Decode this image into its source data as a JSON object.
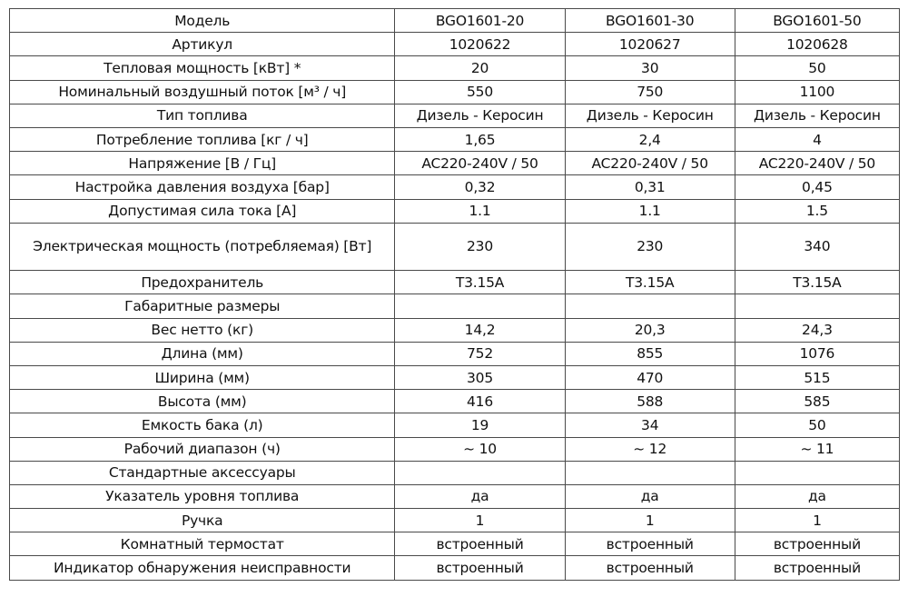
{
  "table": {
    "rows": [
      {
        "param": "Модель",
        "values": [
          "BGO1601-20",
          "BGO1601-30",
          "BGO1601-50"
        ]
      },
      {
        "param": "Артикул",
        "values": [
          "1020622",
          "1020627",
          "1020628"
        ]
      },
      {
        "param": "Тепловая мощность [кВт] *",
        "values": [
          "20",
          "30",
          "50"
        ]
      },
      {
        "param": "Номинальный воздушный поток [м³ / ч]",
        "values": [
          "550",
          "750",
          "1100"
        ]
      },
      {
        "param": "Тип топлива",
        "values": [
          "Дизель - Керосин",
          "Дизель - Керосин",
          "Дизель - Керосин"
        ]
      },
      {
        "param": "Потребление топлива [кг / ч]",
        "values": [
          "1,65",
          "2,4",
          "4"
        ]
      },
      {
        "param": "Напряжение [В / Гц]",
        "values": [
          "AC220-240V / 50",
          "AC220-240V / 50",
          "AC220-240V / 50"
        ]
      },
      {
        "param": "Настройка давления воздуха [бар]",
        "values": [
          "0,32",
          "0,31",
          "0,45"
        ]
      },
      {
        "param": "Допустимая сила тока [A]",
        "values": [
          "1.1",
          "1.1",
          "1.5"
        ]
      },
      {
        "param": "Электрическая мощность (потребляемая) [Вт]",
        "values": [
          "230",
          "230",
          "340"
        ]
      },
      {
        "param": "Предохранитель",
        "values": [
          "T3.15A",
          "T3.15A",
          "T3.15A"
        ]
      },
      {
        "param": "Габаритные размеры",
        "values": [
          "",
          "",
          ""
        ]
      },
      {
        "param": "Вес нетто (кг)",
        "values": [
          "14,2",
          "20,3",
          "24,3"
        ]
      },
      {
        "param": "Длина (мм)",
        "values": [
          "752",
          "855",
          "1076"
        ]
      },
      {
        "param": "Ширина (мм)",
        "values": [
          "305",
          "470",
          "515"
        ]
      },
      {
        "param": "Высота (мм)",
        "values": [
          "416",
          "588",
          "585"
        ]
      },
      {
        "param": "Емкость бака (л)",
        "values": [
          "19",
          "34",
          "50"
        ]
      },
      {
        "param": "Рабочий диапазон (ч)",
        "values": [
          "~ 10",
          "~ 12",
          "~ 11"
        ]
      },
      {
        "param": "Стандартные аксессуары",
        "values": [
          "",
          "",
          ""
        ]
      },
      {
        "param": "Указатель уровня топлива",
        "values": [
          "да",
          "да",
          "да"
        ]
      },
      {
        "param": "Ручка",
        "values": [
          "1",
          "1",
          "1"
        ]
      },
      {
        "param": "Комнатный термостат",
        "values": [
          "встроенный",
          "встроенный",
          "встроенный"
        ]
      },
      {
        "param": "Индикатор обнаружения неисправности",
        "values": [
          "встроенный",
          "встроенный",
          "встроенный"
        ]
      }
    ]
  }
}
